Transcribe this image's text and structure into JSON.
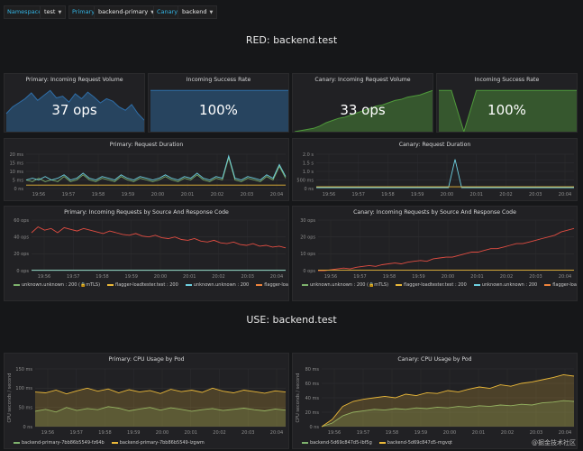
{
  "topbar": {
    "namespace_label": "Namespace",
    "namespace_value": "test",
    "primary_label": "Primary",
    "primary_value": "backend-primary",
    "canary_label": "Canary",
    "canary_value": "backend"
  },
  "rows": {
    "red_title": "RED: backend.test",
    "use_title": "USE: backend.test"
  },
  "stats": [
    {
      "title": "Primary: Incoming Request Volume",
      "value": "37 ops",
      "color": "#2f6ea8"
    },
    {
      "title": "Incoming Success Rate",
      "value": "100%",
      "color": "#2f6ea8"
    },
    {
      "title": "Canary: Incoming Request Volume",
      "value": "33 ops",
      "color": "#4f9a3b"
    },
    {
      "title": "Incoming Success Rate",
      "value": "100%",
      "color": "#4f9a3b"
    }
  ],
  "time_ticks": [
    "19:56",
    "19:57",
    "19:58",
    "19:59",
    "20:00",
    "20:01",
    "20:02",
    "20:03",
    "20:04"
  ],
  "chart_data": [
    {
      "type": "area",
      "title": "Primary: Incoming Request Volume",
      "values": [
        22,
        30,
        35,
        40,
        47,
        38,
        44,
        50,
        41,
        43,
        36,
        46,
        40,
        48,
        42,
        35,
        40,
        37,
        30,
        26,
        33,
        22,
        14
      ]
    },
    {
      "type": "area",
      "title": "Incoming Success Rate",
      "values": [
        100,
        100,
        100,
        100,
        100,
        100,
        100,
        100,
        100,
        100,
        100,
        100
      ]
    },
    {
      "type": "area",
      "title": "Canary: Incoming Request Volume",
      "values": [
        0,
        1,
        2,
        3,
        5,
        8,
        10,
        12,
        13,
        15,
        17,
        19,
        21,
        23,
        24,
        26,
        28,
        29,
        31,
        32,
        33,
        35,
        37
      ]
    },
    {
      "type": "area",
      "title": "Incoming Success Rate",
      "values": [
        100,
        100,
        0,
        100,
        100,
        100,
        100,
        100,
        100,
        100,
        100,
        100
      ]
    },
    {
      "type": "line",
      "title": "Primary: Request Duration",
      "yticks": [
        "20 ms",
        "15 ms",
        "10 ms",
        "5 ms",
        "0 ns"
      ],
      "ylim": [
        0,
        20
      ],
      "series": [
        {
          "color": "#7eb26d",
          "values": [
            5,
            4,
            6,
            4,
            5,
            4,
            7,
            4,
            5,
            8,
            5,
            4,
            6,
            5,
            4,
            7,
            5,
            4,
            6,
            5,
            4,
            5,
            7,
            5,
            4,
            6,
            5,
            8,
            5,
            4,
            6,
            5,
            18,
            5,
            4,
            6,
            5,
            4,
            7,
            5,
            13,
            6
          ]
        },
        {
          "color": "#eab839",
          "values": [
            2,
            2,
            2,
            2,
            2,
            2,
            2,
            2,
            2,
            2,
            2,
            2,
            2,
            2,
            2,
            2,
            2,
            2,
            2,
            2,
            2,
            2,
            2,
            2,
            2,
            2,
            2,
            2,
            2,
            2,
            2,
            2,
            2,
            2,
            2,
            2,
            2,
            2,
            2,
            2,
            2,
            2
          ]
        },
        {
          "color": "#6ed0e0",
          "values": [
            5,
            6,
            5,
            7,
            5,
            6,
            8,
            5,
            6,
            9,
            6,
            5,
            7,
            6,
            5,
            8,
            6,
            5,
            7,
            6,
            5,
            6,
            8,
            6,
            5,
            7,
            6,
            9,
            6,
            5,
            7,
            6,
            19,
            6,
            5,
            7,
            6,
            5,
            8,
            6,
            14,
            7
          ]
        }
      ]
    },
    {
      "type": "line",
      "title": "Canary: Request Duration",
      "yticks": [
        "2.0 s",
        "1.5 s",
        "1.0 s",
        "500 ms",
        "0 ns"
      ],
      "ylim": [
        0,
        2
      ],
      "series": [
        {
          "color": "#6ed0e0",
          "values": [
            0.05,
            0.05,
            0.05,
            0.05,
            0.05,
            0.05,
            0.05,
            0.05,
            0.05,
            0.05,
            0.05,
            0.05,
            0.05,
            0.05,
            0.05,
            0.05,
            0.05,
            0.05,
            0.05,
            0.05,
            0.05,
            1.7,
            0.05,
            0.05,
            0.05,
            0.05,
            0.05,
            0.05,
            0.05,
            0.05,
            0.05,
            0.05,
            0.05,
            0.05,
            0.05,
            0.05,
            0.05,
            0.05,
            0.05,
            0.05
          ]
        },
        {
          "color": "#eab839",
          "values": [
            0.1,
            0.1,
            0.1,
            0.1,
            0.1,
            0.1,
            0.1,
            0.1,
            0.1,
            0.1,
            0.1,
            0.1,
            0.1,
            0.1,
            0.1,
            0.1,
            0.1,
            0.1,
            0.1,
            0.1,
            0.1,
            0.1,
            0.1,
            0.1,
            0.1,
            0.1,
            0.1,
            0.1,
            0.1,
            0.1,
            0.1,
            0.1,
            0.1,
            0.1,
            0.1,
            0.1,
            0.1,
            0.1,
            0.1,
            0.1
          ]
        }
      ]
    },
    {
      "type": "line",
      "title": "Primary: Incoming Requests by Source And Response Code",
      "yticks": [
        "60 ops",
        "40 ops",
        "20 ops",
        "0 ops"
      ],
      "ylim": [
        0,
        60
      ],
      "series": [
        {
          "color": "#e24d42",
          "values": [
            45,
            52,
            48,
            50,
            45,
            51,
            49,
            47,
            50,
            48,
            46,
            44,
            47,
            45,
            43,
            42,
            44,
            41,
            40,
            42,
            39,
            38,
            40,
            37,
            36,
            38,
            35,
            34,
            36,
            33,
            32,
            34,
            31,
            30,
            32,
            29,
            30,
            28,
            29,
            27
          ]
        },
        {
          "color": "#eab839",
          "values": [
            0.5,
            0.5,
            0.5,
            0.5,
            0.5,
            0.5,
            0.5,
            0.5,
            0.5,
            0.5,
            0.5,
            0.5,
            0.5,
            0.5,
            0.5,
            0.5,
            0.5,
            0.5,
            0.5,
            0.5
          ]
        },
        {
          "color": "#6ed0e0",
          "values": [
            0.3,
            0.3,
            0.3,
            0.3,
            0.3,
            0.3,
            0.3,
            0.3,
            0.3,
            0.3,
            0.3,
            0.3,
            0.3,
            0.3,
            0.3,
            0.3,
            0.3,
            0.3,
            0.3,
            0.3
          ]
        }
      ],
      "legend": [
        {
          "label": "unknown.unknown : 200 (🔒mTLS)",
          "color": "#7eb26d"
        },
        {
          "label": "flagger-loadtester.test : 200",
          "color": "#eab839"
        },
        {
          "label": "unknown.unknown : 200",
          "color": "#6ed0e0"
        },
        {
          "label": "flagger-loadtester.test : 202",
          "color": "#ef843c"
        },
        {
          "label": "frontend-primary.test : 202",
          "color": "#e24d42"
        }
      ]
    },
    {
      "type": "line",
      "title": "Canary: Incoming Requests by Source And Response Code",
      "yticks": [
        "30 ops",
        "20 ops",
        "10 ops",
        "0 ops"
      ],
      "ylim": [
        0,
        30
      ],
      "series": [
        {
          "color": "#e24d42",
          "values": [
            0,
            0,
            0.5,
            1,
            1.5,
            1,
            2,
            2.5,
            3,
            2.5,
            3.5,
            4,
            4.5,
            4,
            5,
            5.5,
            6,
            5.5,
            7,
            7.5,
            8,
            8,
            9,
            10,
            11,
            11,
            12,
            13,
            13,
            14,
            15,
            16,
            16,
            17,
            18,
            19,
            20,
            21,
            23,
            24,
            25
          ]
        },
        {
          "color": "#eab839",
          "values": [
            0.3,
            0.3,
            0.3,
            0.3,
            0.3,
            0.3,
            0.3,
            0.3,
            0.3,
            0.3,
            0.3,
            0.3,
            0.3,
            0.3,
            0.3,
            0.3,
            0.3,
            0.3,
            0.3,
            0.3
          ]
        }
      ],
      "legend": [
        {
          "label": "unknown.unknown : 200 (🔒mTLS)",
          "color": "#7eb26d"
        },
        {
          "label": "flagger-loadtester.test : 200",
          "color": "#eab839"
        },
        {
          "label": "unknown.unknown : 200",
          "color": "#6ed0e0"
        },
        {
          "label": "flagger-loadtester.test : 202",
          "color": "#ef843c"
        },
        {
          "label": "frontend-primary.test : 202",
          "color": "#e24d42"
        },
        {
          "label": "flagger-loadtester.test : 500",
          "color": "#1f78c1"
        }
      ]
    },
    {
      "type": "area",
      "title": "Primary: CPU Usage by Pod",
      "ylabel": "CPU seconds / second",
      "yticks": [
        "150 ms",
        "100 ms",
        "50 ms",
        "0 ns"
      ],
      "ylim": [
        0,
        150
      ],
      "series": [
        {
          "color": "#7eb26d",
          "name": "backend-primary-7bb86b5549-fz64b",
          "values": [
            40,
            45,
            38,
            50,
            42,
            47,
            44,
            52,
            48,
            41,
            46,
            50,
            43,
            49,
            45,
            40,
            44,
            47,
            42,
            45,
            48,
            44,
            41,
            46,
            43
          ]
        },
        {
          "color": "#eab839",
          "name": "backend-primary-7bb86b5549-lzgwm",
          "values": [
            90,
            88,
            95,
            85,
            93,
            100,
            92,
            98,
            88,
            96,
            90,
            94,
            86,
            97,
            91,
            95,
            89,
            100,
            92,
            88,
            95,
            91,
            87,
            93,
            90
          ]
        }
      ]
    },
    {
      "type": "area",
      "title": "Canary: CPU Usage by Pod",
      "ylabel": "CPU seconds / second",
      "yticks": [
        "80 ms",
        "60 ms",
        "40 ms",
        "20 ms",
        "0 ns"
      ],
      "ylim": [
        0,
        80
      ],
      "series": [
        {
          "color": "#7eb26d",
          "name": "backend-5d69c847d5-lbf5g",
          "values": [
            0,
            5,
            15,
            20,
            22,
            24,
            23,
            25,
            24,
            26,
            25,
            27,
            26,
            28,
            27,
            29,
            28,
            30,
            29,
            31,
            30,
            33,
            34,
            36,
            35
          ]
        },
        {
          "color": "#eab839",
          "name": "backend-5d69c847d5-mgvqt",
          "values": [
            0,
            10,
            28,
            35,
            38,
            40,
            42,
            40,
            45,
            43,
            47,
            46,
            50,
            48,
            52,
            55,
            53,
            58,
            56,
            60,
            62,
            65,
            68,
            72,
            70
          ]
        }
      ]
    }
  ],
  "watermark": "@掘金技术社区"
}
